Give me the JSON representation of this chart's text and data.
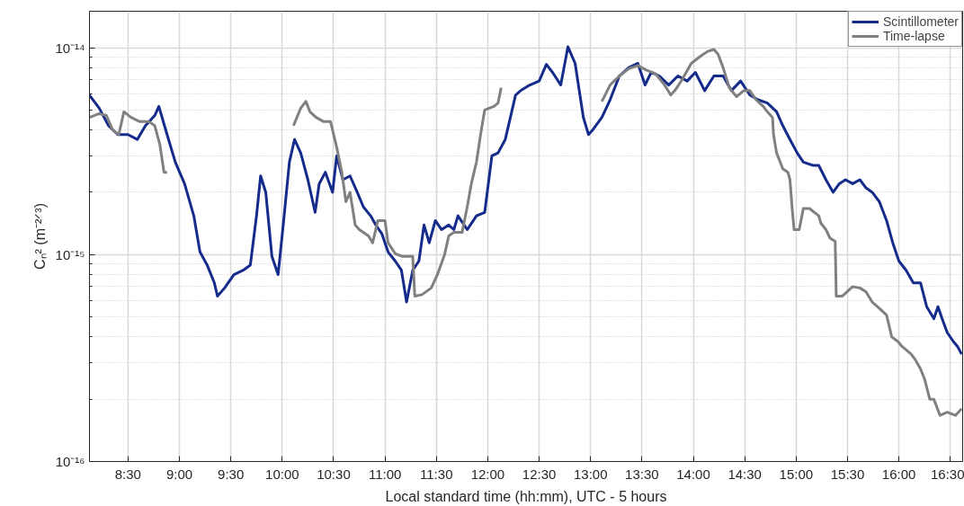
{
  "chart_data": {
    "type": "line",
    "xlabel": "Local standard time (hh:mm), UTC - 5 hours",
    "ylabel": "Cₙ² (m⁻²ᐟ³)",
    "log": "y",
    "grid": true,
    "legend": "top right",
    "line_style": "solid",
    "marker": "none",
    "xlim": [
      8.125,
      16.62
    ],
    "ylim": [
      1e-16,
      1.5e-14
    ],
    "xticks": [
      {
        "value": 8.5,
        "label": "8:30"
      },
      {
        "value": 9.0,
        "label": "9:00"
      },
      {
        "value": 9.5,
        "label": "9:30"
      },
      {
        "value": 10.0,
        "label": "10:00"
      },
      {
        "value": 10.5,
        "label": "10:30"
      },
      {
        "value": 11.0,
        "label": "11:00"
      },
      {
        "value": 11.5,
        "label": "11:30"
      },
      {
        "value": 12.0,
        "label": "12:00"
      },
      {
        "value": 12.5,
        "label": "12:30"
      },
      {
        "value": 13.0,
        "label": "13:00"
      },
      {
        "value": 13.5,
        "label": "13:30"
      },
      {
        "value": 14.0,
        "label": "14:00"
      },
      {
        "value": 14.5,
        "label": "14:30"
      },
      {
        "value": 15.0,
        "label": "15:00"
      },
      {
        "value": 15.5,
        "label": "15:30"
      },
      {
        "value": 16.0,
        "label": "16:00"
      },
      {
        "value": 16.5,
        "label": "16:30"
      }
    ],
    "yticks": [
      {
        "value": 1e-16,
        "label": "10⁻¹⁶"
      },
      {
        "value": 1e-15,
        "label": "10⁻¹⁵"
      },
      {
        "value": 1e-14,
        "label": "10⁻¹⁴"
      }
    ],
    "series": [
      {
        "name": "Scintillometer",
        "color": "#142b8c",
        "x": [
          8.125,
          8.22,
          8.31,
          8.4,
          8.5,
          8.59,
          8.67,
          8.76,
          8.8,
          8.88,
          8.96,
          9.05,
          9.14,
          9.2,
          9.27,
          9.34,
          9.37,
          9.44,
          9.53,
          9.62,
          9.69,
          9.75,
          9.79,
          9.84,
          9.9,
          9.96,
          10.01,
          10.07,
          10.12,
          10.18,
          10.25,
          10.32,
          10.36,
          10.42,
          10.49,
          10.53,
          10.59,
          10.66,
          10.73,
          10.79,
          10.86,
          10.91,
          10.97,
          11.03,
          11.1,
          11.16,
          11.21,
          11.27,
          11.33,
          11.38,
          11.43,
          11.49,
          11.55,
          11.62,
          11.67,
          11.71,
          11.8,
          11.89,
          11.97,
          12.04,
          12.1,
          12.17,
          12.22,
          12.27,
          12.32,
          12.41,
          12.5,
          12.57,
          12.63,
          12.71,
          12.78,
          12.85,
          12.89,
          12.93,
          12.98,
          13.02,
          13.11,
          13.19,
          13.28,
          13.37,
          13.46,
          13.53,
          13.59,
          13.67,
          13.76,
          13.85,
          13.94,
          14.02,
          14.11,
          14.2,
          14.29,
          14.37,
          14.46,
          14.55,
          14.63,
          14.72,
          14.81,
          14.87,
          14.94,
          15.01,
          15.07,
          15.16,
          15.22,
          15.29,
          15.36,
          15.42,
          15.48,
          15.55,
          15.62,
          15.68,
          15.74,
          15.81,
          15.88,
          15.94,
          16.0,
          16.07,
          16.14,
          16.21,
          16.27,
          16.34,
          16.38,
          16.42,
          16.47,
          16.53,
          16.57,
          16.61
        ],
        "values": [
          5.9e-15,
          5.1e-15,
          4.2e-15,
          3.8e-15,
          3.8e-15,
          3.6e-15,
          4.2e-15,
          4.7e-15,
          5.2e-15,
          3.8e-15,
          2.8e-15,
          2.2e-15,
          1.54e-15,
          1.03e-15,
          8.9e-16,
          7.3e-16,
          6.3e-16,
          6.9e-16,
          8e-16,
          8.4e-16,
          8.9e-16,
          1.54e-15,
          2.4e-15,
          2e-15,
          9.8e-16,
          8e-16,
          1.39e-15,
          2.8e-15,
          3.6e-15,
          3.1e-15,
          2.3e-15,
          1.6e-15,
          2.2e-15,
          2.5e-15,
          2e-15,
          3e-15,
          2.3e-15,
          2.4e-15,
          2e-15,
          1.7e-15,
          1.54e-15,
          1.39e-15,
          1.26e-15,
          1.03e-15,
          9.3e-16,
          8.4e-16,
          5.9e-16,
          8.4e-16,
          9.3e-16,
          1.39e-15,
          1.14e-15,
          1.46e-15,
          1.32e-15,
          1.39e-15,
          1.32e-15,
          1.54e-15,
          1.32e-15,
          1.54e-15,
          1.6e-15,
          3e-15,
          3.1e-15,
          3.6e-15,
          4.6e-15,
          5.9e-15,
          6.2e-15,
          6.6e-15,
          6.9e-15,
          8.3e-15,
          7.6e-15,
          6.6e-15,
          1.01e-14,
          8.4e-15,
          6.2e-15,
          4.6e-15,
          3.8e-15,
          4e-15,
          4.6e-15,
          5.6e-15,
          7.3e-15,
          8e-15,
          8.4e-15,
          6.6e-15,
          7.6e-15,
          7.3e-15,
          6.6e-15,
          7.3e-15,
          6.9e-15,
          7.6e-15,
          6.2e-15,
          7.3e-15,
          7.3e-15,
          6.2e-15,
          6.9e-15,
          5.9e-15,
          5.6e-15,
          5.4e-15,
          4.9e-15,
          4.2e-15,
          3.6e-15,
          3.1e-15,
          2.8e-15,
          2.7e-15,
          2.7e-15,
          2.3e-15,
          2e-15,
          2.2e-15,
          2.3e-15,
          2.2e-15,
          2.3e-15,
          2.1e-15,
          2e-15,
          1.8e-15,
          1.46e-15,
          1.14e-15,
          9.3e-16,
          8.4e-16,
          7.3e-16,
          7.3e-16,
          5.6e-16,
          4.9e-16,
          5.6e-16,
          4.9e-16,
          4.2e-16,
          3.8e-16,
          3.6e-16,
          3.3e-16
        ]
      },
      {
        "name": "Time-lapse",
        "color": "#808080",
        "x": [
          8.125,
          8.22,
          8.29,
          8.35,
          8.41,
          8.46,
          8.53,
          8.61,
          8.7,
          8.76,
          8.81,
          8.85,
          8.88,
          9.5,
          10.11,
          10.18,
          10.23,
          10.27,
          10.33,
          10.4,
          10.47,
          10.53,
          10.58,
          10.62,
          10.66,
          10.71,
          10.75,
          10.84,
          10.88,
          10.93,
          11.0,
          11.03,
          11.1,
          11.17,
          11.27,
          11.29,
          11.36,
          11.45,
          11.51,
          11.58,
          11.62,
          11.67,
          11.75,
          11.8,
          11.84,
          11.89,
          11.93,
          11.97,
          12.06,
          12.1,
          12.13,
          12.7,
          13.11,
          13.19,
          13.28,
          13.37,
          13.46,
          13.54,
          13.63,
          13.72,
          13.78,
          13.82,
          13.89,
          13.98,
          14.07,
          14.14,
          14.2,
          14.24,
          14.29,
          14.35,
          14.42,
          14.49,
          14.55,
          14.61,
          14.68,
          14.72,
          14.77,
          14.78,
          14.81,
          14.87,
          14.92,
          14.94,
          14.96,
          14.98,
          15.03,
          15.07,
          15.13,
          15.22,
          15.24,
          15.29,
          15.33,
          15.38,
          15.39,
          15.45,
          15.55,
          15.62,
          15.68,
          15.74,
          15.81,
          15.88,
          15.93,
          15.99,
          16.03,
          16.12,
          16.16,
          16.21,
          16.25,
          16.3,
          16.34,
          16.4,
          16.47,
          16.55,
          16.61
        ],
        "values": [
          4.6e-15,
          4.8e-15,
          4.7e-15,
          4e-15,
          3.8e-15,
          4.9e-15,
          4.6e-15,
          4.4e-15,
          4.4e-15,
          4.2e-15,
          3.4e-15,
          2.5e-15,
          2.5e-15,
          null,
          4.2e-15,
          5.1e-15,
          5.5e-15,
          4.9e-15,
          4.6e-15,
          4.4e-15,
          4.4e-15,
          3.3e-15,
          2.5e-15,
          1.8e-15,
          2e-15,
          1.39e-15,
          1.32e-15,
          1.23e-15,
          1.14e-15,
          1.46e-15,
          1.46e-15,
          1.14e-15,
          1.01e-15,
          9.8e-16,
          9.8e-16,
          6.3e-16,
          6.4e-16,
          6.9e-16,
          8e-16,
          1e-15,
          1.23e-15,
          1.28e-15,
          1.28e-15,
          1.7e-15,
          2.2e-15,
          2.8e-15,
          3.8e-15,
          5e-15,
          5.2e-15,
          5.4e-15,
          6.4e-15,
          null,
          5.5e-15,
          6.6e-15,
          7.3e-15,
          7.9e-15,
          8.2e-15,
          7.8e-15,
          7.5e-15,
          6.6e-15,
          5.9e-15,
          6.2e-15,
          7e-15,
          8.4e-15,
          9.1e-15,
          9.6e-15,
          9.8e-15,
          9.3e-15,
          8e-15,
          6.4e-15,
          5.8e-15,
          6.2e-15,
          6.2e-15,
          5.6e-15,
          5.2e-15,
          4.9e-15,
          4.6e-15,
          3.8e-15,
          3.1e-15,
          2.6e-15,
          2.5e-15,
          2.3e-15,
          1.7e-15,
          1.32e-15,
          1.32e-15,
          1.67e-15,
          1.67e-15,
          1.54e-15,
          1.42e-15,
          1.32e-15,
          1.2e-15,
          1.16e-15,
          6.3e-16,
          6.3e-16,
          7e-16,
          6.9e-16,
          6.6e-16,
          5.9e-16,
          5.5e-16,
          5.1e-16,
          4e-16,
          3.8e-16,
          3.6e-16,
          3.3e-16,
          3.1e-16,
          2.8e-16,
          2.5e-16,
          2e-16,
          2e-16,
          1.67e-16,
          1.73e-16,
          1.67e-16,
          1.8e-16
        ]
      }
    ]
  }
}
